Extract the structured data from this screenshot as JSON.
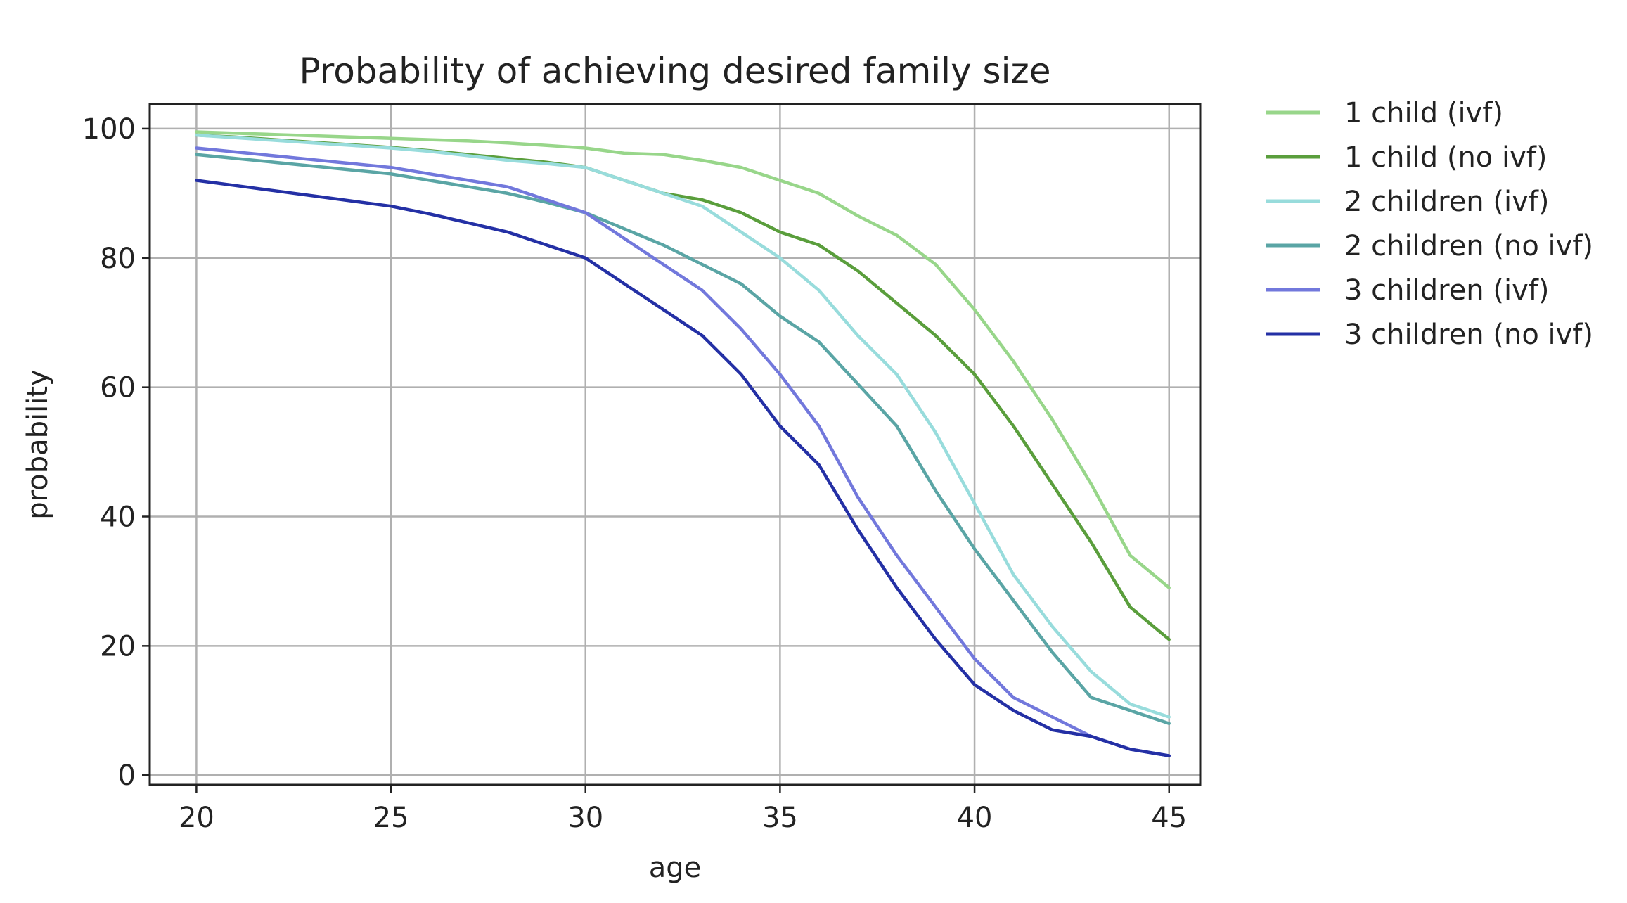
{
  "chart_data": {
    "type": "line",
    "title": "Probability of achieving desired family size",
    "xlabel": "age",
    "ylabel": "probability",
    "xlim": [
      18.8,
      45.8
    ],
    "ylim": [
      -1.5,
      103.8
    ],
    "xticks": [
      20,
      25,
      30,
      35,
      40,
      45
    ],
    "yticks": [
      0,
      20,
      40,
      60,
      80,
      100
    ],
    "grid": true,
    "legend_position": "outside-right",
    "x": [
      20,
      21,
      22,
      23,
      24,
      25,
      26,
      27,
      28,
      29,
      30,
      31,
      32,
      33,
      34,
      35,
      36,
      37,
      38,
      39,
      40,
      41,
      42,
      43,
      44,
      45
    ],
    "series": [
      {
        "name": "1 child (ivf)",
        "color": "#98d68a",
        "values": [
          99.5,
          99.3,
          99.1,
          98.9,
          98.7,
          98.5,
          98.3,
          98.1,
          97.8,
          97.4,
          97.0,
          96.2,
          96.0,
          95.1,
          94.0,
          92.0,
          90.0,
          86.5,
          83.5,
          79.0,
          72.0,
          64.0,
          55.0,
          45.0,
          34.0,
          29.0
        ]
      },
      {
        "name": "1 child (no ivf)",
        "color": "#5a9e3c",
        "values": [
          99.0,
          98.7,
          98.3,
          97.9,
          97.5,
          97.1,
          96.6,
          96.0,
          95.4,
          94.8,
          94.0,
          92.0,
          90.0,
          89.0,
          87.0,
          84.0,
          82.0,
          78.0,
          73.0,
          68.0,
          62.0,
          54.0,
          45.0,
          36.0,
          26.0,
          21.0
        ]
      },
      {
        "name": "2 children (ivf)",
        "color": "#98dcdc",
        "values": [
          99.0,
          98.6,
          98.2,
          97.8,
          97.4,
          97.0,
          96.5,
          95.8,
          95.1,
          94.6,
          94.0,
          92.0,
          90.0,
          88.0,
          84.0,
          80.0,
          75.0,
          68.0,
          62.0,
          53.0,
          42.0,
          31.0,
          23.0,
          16.0,
          11.0,
          9.0
        ]
      },
      {
        "name": "2 children (no ivf)",
        "color": "#5aa5a5",
        "values": [
          96.0,
          95.4,
          94.8,
          94.2,
          93.6,
          93.0,
          92.0,
          91.0,
          90.0,
          88.6,
          87.0,
          84.5,
          82.0,
          79.0,
          76.0,
          71.0,
          67.0,
          60.5,
          54.0,
          44.0,
          35.0,
          27.0,
          19.0,
          12.0,
          10.0,
          8.0
        ]
      },
      {
        "name": "3 children (ivf)",
        "color": "#7278dc",
        "values": [
          97.0,
          96.4,
          95.8,
          95.2,
          94.6,
          94.0,
          93.0,
          92.0,
          91.0,
          89.0,
          87.0,
          83.0,
          79.0,
          75.0,
          69.0,
          62.0,
          54.0,
          43.0,
          34.0,
          26.0,
          18.0,
          12.0,
          9.0,
          6.0,
          4.0,
          3.0
        ]
      },
      {
        "name": "3 children (no ivf)",
        "color": "#2430a5",
        "values": [
          92.0,
          91.2,
          90.4,
          89.6,
          88.8,
          88.0,
          86.8,
          85.4,
          84.0,
          82.0,
          80.0,
          76.0,
          72.0,
          68.0,
          62.0,
          54.0,
          48.0,
          38.0,
          29.0,
          21.0,
          14.0,
          10.0,
          7.0,
          6.0,
          4.0,
          3.0
        ]
      }
    ]
  }
}
